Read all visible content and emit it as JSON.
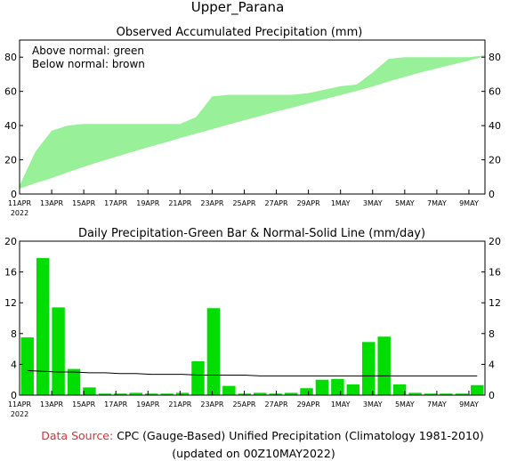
{
  "title": "Upper_Parana",
  "footer": {
    "source_label": "Data Source:",
    "source_text": "CPC (Gauge-Based) Unified Precipitation (Climatology 1981-2010)",
    "updated": "(updated on 00Z10MAY2022)"
  },
  "colors": {
    "fill_green": "#98f098",
    "bar_green": "#00dd00",
    "source_red": "#e03030"
  },
  "chart_data": [
    {
      "type": "area",
      "title": "Observed Accumulated Precipitation (mm)",
      "legend_lines": [
        "Above normal: green",
        "Below normal: brown"
      ],
      "legend_placement": "top-left",
      "year_label": "2022",
      "x_tick_labels": [
        "11APR",
        "13APR",
        "15APR",
        "17APR",
        "19APR",
        "21APR",
        "23APR",
        "25APR",
        "27APR",
        "29APR",
        "1MAY",
        "3MAY",
        "5MAY",
        "7MAY",
        "9MAY"
      ],
      "ylim": [
        0,
        90
      ],
      "yticks": [
        0,
        20,
        40,
        60,
        80
      ],
      "series": [
        {
          "values": [
            5,
            25,
            37,
            40,
            41,
            41,
            41,
            41,
            41,
            41,
            41,
            45,
            57,
            58,
            58,
            58,
            58,
            58,
            59,
            61,
            63,
            64,
            71,
            79,
            80,
            80,
            80,
            80,
            80,
            81
          ]
        },
        {
          "values": [
            3.2,
            6.4,
            9.3,
            12.7,
            15.9,
            18.9,
            21.7,
            24.5,
            27.3,
            29.9,
            32.7,
            35.3,
            37.9,
            40.5,
            43.1,
            45.6,
            48.2,
            50.5,
            53.0,
            55.5,
            57.8,
            60.2,
            62.8,
            65.8,
            68.4,
            71.1,
            73.4,
            75.7,
            78.0,
            80.5
          ]
        }
      ]
    },
    {
      "type": "bar",
      "title": "Daily Precipitation-Green Bar & Normal-Solid Line (mm/day)",
      "year_label": "2022",
      "x_tick_labels": [
        "11APR",
        "13APR",
        "15APR",
        "17APR",
        "19APR",
        "21APR",
        "23APR",
        "25APR",
        "27APR",
        "29APR",
        "1MAY",
        "3MAY",
        "5MAY",
        "7MAY",
        "9MAY"
      ],
      "ylim": [
        0,
        20
      ],
      "yticks": [
        0,
        4,
        8,
        12,
        16,
        20
      ],
      "series": [
        {
          "values": [
            7.5,
            17.8,
            11.4,
            3.4,
            1.0,
            0.2,
            0.2,
            0.3,
            0.2,
            0.2,
            0.3,
            4.4,
            11.3,
            1.2,
            0.2,
            0.3,
            0.2,
            0.3,
            0.9,
            2.0,
            2.1,
            1.4,
            6.9,
            7.6,
            1.4,
            0.3,
            0.2,
            0.2,
            0.2,
            1.3
          ]
        },
        {
          "values": [
            3.2,
            3.1,
            3.0,
            3.0,
            2.9,
            2.9,
            2.8,
            2.8,
            2.7,
            2.7,
            2.7,
            2.6,
            2.6,
            2.6,
            2.6,
            2.5,
            2.5,
            2.5,
            2.5,
            2.5,
            2.5,
            2.5,
            2.5,
            2.5,
            2.5,
            2.5,
            2.5,
            2.5,
            2.5,
            2.5
          ]
        }
      ]
    }
  ]
}
